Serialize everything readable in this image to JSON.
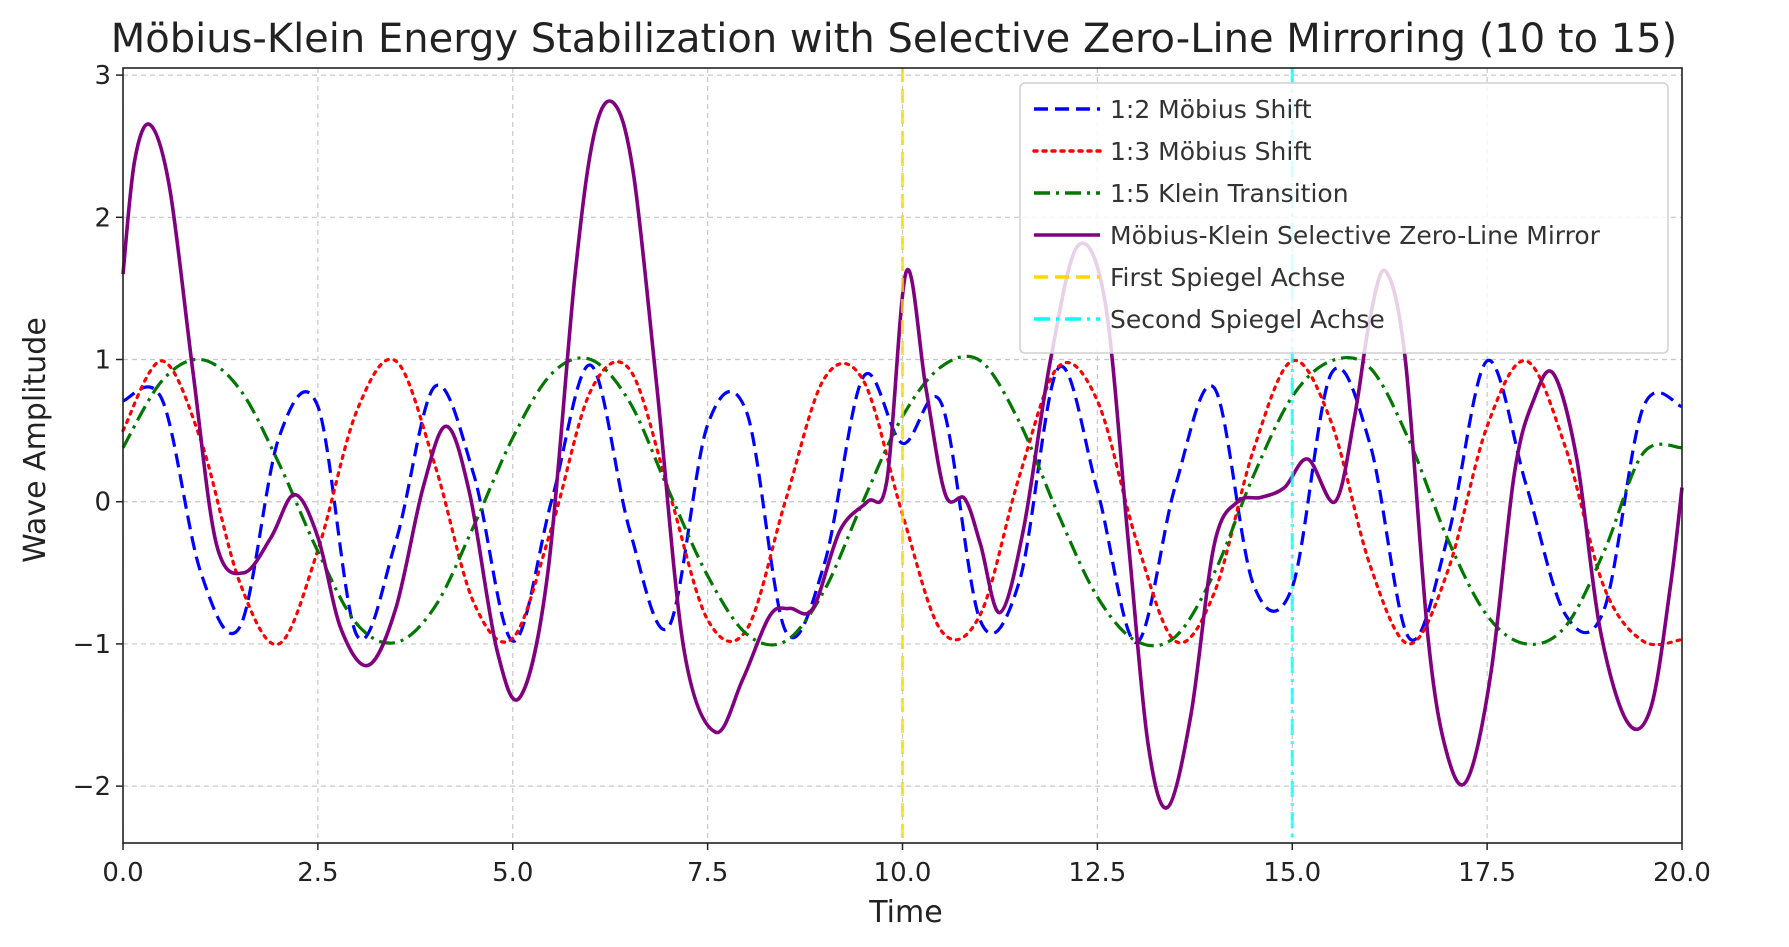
{
  "chart_data": {
    "type": "line",
    "title": "Möbius-Klein Energy Stabilization with Selective Zero-Line Mirroring (10 to 15)",
    "xlabel": "Time",
    "ylabel": "Wave Amplitude",
    "xlim": [
      0,
      20
    ],
    "ylim": [
      -2.4,
      3.05
    ],
    "xticks": [
      0,
      2.5,
      5,
      7.5,
      10,
      12.5,
      15,
      17.5,
      20
    ],
    "xtick_labels": [
      "0.0",
      "2.5",
      "5.0",
      "7.5",
      "10.0",
      "12.5",
      "15.0",
      "17.5",
      "20.0"
    ],
    "yticks": [
      -2,
      -1,
      0,
      1,
      2,
      3
    ],
    "ytick_labels": [
      "−2",
      "−1",
      "0",
      "1",
      "2",
      "3"
    ],
    "grid": true,
    "legend_position": "top-right",
    "series": [
      {
        "name": "1:2 Möbius Shift",
        "color": "#0000ff",
        "style": "dashed",
        "x": [
          0,
          0.5,
          1,
          1.5,
          2,
          2.5,
          3,
          3.5,
          4,
          4.5,
          5,
          5.5,
          6,
          6.5,
          7,
          7.5,
          8,
          8.5,
          9,
          9.5,
          10,
          10.5,
          11,
          11.5,
          12,
          12.5,
          13,
          13.5,
          14,
          14.5,
          15,
          15.5,
          16,
          16.5,
          17,
          17.5,
          18,
          18.5,
          19,
          19.5,
          20
        ],
        "y": [
          0.71,
          0.72,
          -0.5,
          -0.88,
          0.45,
          0.67,
          -0.94,
          -0.28,
          0.81,
          0.19,
          -0.98,
          0.01,
          0.96,
          -0.2,
          -0.88,
          0.54,
          0.63,
          -0.91,
          -0.43,
          0.88,
          0.41,
          0.69,
          -0.84,
          -0.56,
          0.94,
          0.08,
          -0.99,
          0.11,
          0.8,
          -0.58,
          -0.6,
          0.9,
          0.4,
          -0.96,
          -0.24,
          0.99,
          0.12,
          -0.79,
          -0.76,
          0.66,
          0.67
        ]
      },
      {
        "name": "1:3 Möbius Shift",
        "color": "#ff0000",
        "style": "dotted",
        "x": [
          0,
          0.5,
          1,
          1.5,
          2,
          2.5,
          3,
          3.5,
          4,
          4.5,
          5,
          5.5,
          6,
          6.5,
          7,
          7.5,
          8,
          8.5,
          9,
          9.5,
          10,
          10.5,
          11,
          11.5,
          12,
          12.5,
          13,
          13.5,
          14,
          14.5,
          15,
          15.5,
          16,
          16.5,
          17,
          17.5,
          18,
          18.5,
          19,
          19.5,
          20
        ],
        "y": [
          0.5,
          0.99,
          0.43,
          -0.57,
          -1.0,
          -0.34,
          0.64,
          0.99,
          0.26,
          -0.71,
          -0.96,
          -0.18,
          0.78,
          0.93,
          0.08,
          -0.83,
          -0.9,
          0.01,
          0.87,
          0.85,
          -0.09,
          -0.91,
          -0.79,
          0.18,
          0.95,
          0.71,
          -0.27,
          -0.98,
          -0.64,
          0.36,
          0.99,
          0.56,
          -0.45,
          -1.0,
          -0.48,
          0.53,
          0.99,
          0.39,
          -0.6,
          -0.98,
          -0.97
        ]
      },
      {
        "name": "1:5 Klein Transition",
        "color": "#007800",
        "style": "dashdot",
        "x": [
          0,
          0.5,
          1,
          1.5,
          2,
          2.5,
          3,
          3.5,
          4,
          4.5,
          5,
          5.5,
          6,
          6.5,
          7,
          7.5,
          8,
          8.5,
          9,
          9.5,
          10,
          10.5,
          11,
          11.5,
          12,
          12.5,
          13,
          13.5,
          14,
          14.5,
          15,
          15.5,
          16,
          16.5,
          17,
          17.5,
          18,
          18.5,
          19,
          19.5,
          20
        ],
        "y": [
          0.38,
          0.85,
          1.0,
          0.79,
          0.27,
          -0.35,
          -0.86,
          -0.99,
          -0.74,
          -0.17,
          0.45,
          0.9,
          1.0,
          0.7,
          0.08,
          -0.52,
          -0.93,
          -0.98,
          -0.62,
          0.01,
          0.6,
          0.95,
          0.99,
          0.56,
          -0.09,
          -0.67,
          -0.98,
          -0.95,
          -0.5,
          0.18,
          0.74,
          0.99,
          0.94,
          0.43,
          -0.27,
          -0.8,
          -1.0,
          -0.88,
          -0.35,
          0.34,
          0.38
        ]
      },
      {
        "name": "Möbius-Klein Selective Zero-Line Mirror",
        "color": "#800080",
        "style": "solid",
        "x": [
          0,
          0.15,
          0.35,
          0.6,
          0.9,
          1.2,
          1.55,
          1.9,
          2.2,
          2.5,
          2.8,
          3.15,
          3.5,
          3.85,
          4.15,
          4.45,
          4.8,
          5.1,
          5.45,
          5.8,
          6.05,
          6.3,
          6.55,
          6.85,
          7.2,
          7.6,
          7.95,
          8.3,
          8.55,
          8.85,
          9.2,
          9.55,
          9.8,
          10.05,
          10.3,
          10.55,
          10.8,
          11.0,
          11.25,
          11.55,
          11.9,
          12.25,
          12.6,
          12.9,
          13.15,
          13.4,
          13.7,
          14.0,
          14.3,
          14.6,
          14.9,
          15.2,
          15.55,
          15.8,
          16.0,
          16.2,
          16.45,
          16.75,
          17.0,
          17.25,
          17.55,
          17.85,
          18.1,
          18.35,
          18.65,
          18.95,
          19.3,
          19.6,
          19.85,
          20
        ],
        "y": [
          1.6,
          2.4,
          2.65,
          2.2,
          0.9,
          -0.3,
          -0.5,
          -0.25,
          0.05,
          -0.25,
          -0.9,
          -1.15,
          -0.75,
          0.1,
          0.53,
          0.05,
          -1.05,
          -1.37,
          -0.5,
          1.6,
          2.6,
          2.8,
          2.3,
          0.8,
          -1.05,
          -1.62,
          -1.25,
          -0.8,
          -0.75,
          -0.75,
          -0.2,
          0.0,
          0.15,
          1.62,
          0.8,
          0.05,
          0.02,
          -0.3,
          -0.78,
          -0.2,
          1.0,
          1.8,
          1.4,
          -0.3,
          -1.7,
          -2.15,
          -1.5,
          -0.3,
          0.0,
          0.03,
          0.1,
          0.3,
          0.0,
          0.6,
          1.3,
          1.62,
          1.0,
          -1.0,
          -1.8,
          -1.95,
          -1.2,
          0.2,
          0.72,
          0.9,
          0.3,
          -0.9,
          -1.55,
          -1.45,
          -0.6,
          0.1
        ]
      }
    ],
    "vlines": [
      {
        "name": "First Spiegel Achse",
        "x": 10,
        "color": "#ffd700",
        "style": "dashed"
      },
      {
        "name": "Second Spiegel Achse",
        "x": 15,
        "color": "#00ffff",
        "style": "dashdot"
      }
    ]
  }
}
